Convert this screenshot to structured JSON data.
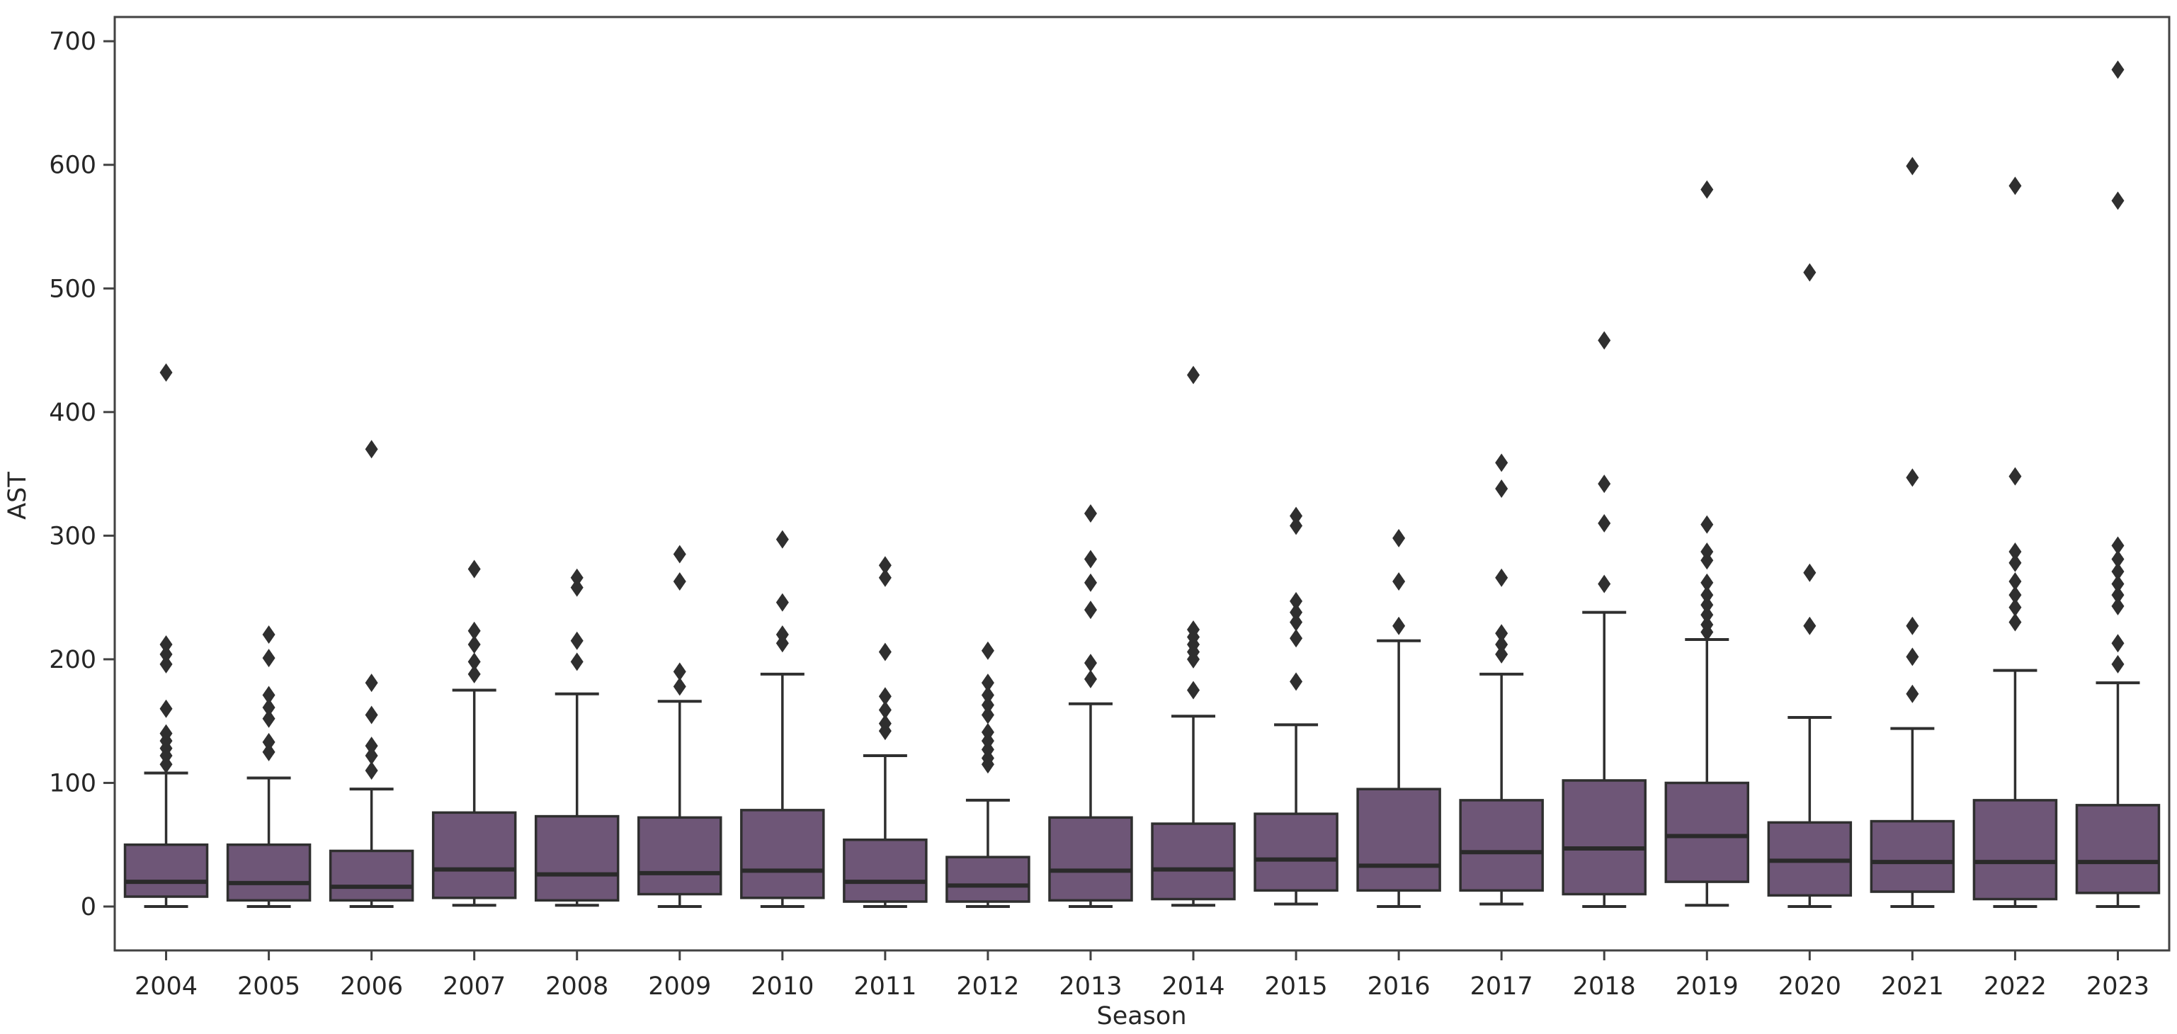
{
  "figure": {
    "background": "#ffffff",
    "box_fill": "#6e5677",
    "line_color": "#2f2f2f",
    "median_color": "#2a2a2a",
    "spine_color": "#424242",
    "text_color": "#262626"
  },
  "chart_data": {
    "type": "box",
    "title": "",
    "xlabel": "Season",
    "ylabel": "AST",
    "ylim": [
      -35,
      719
    ],
    "yticks": [
      0,
      100,
      200,
      300,
      400,
      500,
      600,
      700
    ],
    "grid": false,
    "legend": "none",
    "categories": [
      "2004",
      "2005",
      "2006",
      "2007",
      "2008",
      "2009",
      "2010",
      "2011",
      "2012",
      "2013",
      "2014",
      "2015",
      "2016",
      "2017",
      "2018",
      "2019",
      "2020",
      "2021",
      "2022",
      "2023"
    ],
    "series": [
      {
        "season": "2004",
        "whisker_low": 0,
        "q1": 8,
        "median": 20,
        "q3": 50,
        "whisker_high": 108,
        "outliers": [
          115,
          122,
          128,
          134,
          140,
          160,
          196,
          204,
          212,
          432
        ]
      },
      {
        "season": "2005",
        "whisker_low": 0,
        "q1": 5,
        "median": 19,
        "q3": 50,
        "whisker_high": 104,
        "outliers": [
          125,
          133,
          152,
          161,
          171,
          201,
          220
        ]
      },
      {
        "season": "2006",
        "whisker_low": 0,
        "q1": 5,
        "median": 16,
        "q3": 45,
        "whisker_high": 95,
        "outliers": [
          110,
          122,
          130,
          155,
          181,
          370
        ]
      },
      {
        "season": "2007",
        "whisker_low": 1,
        "q1": 7,
        "median": 30,
        "q3": 76,
        "whisker_high": 175,
        "outliers": [
          188,
          198,
          212,
          223,
          273
        ]
      },
      {
        "season": "2008",
        "whisker_low": 1,
        "q1": 5,
        "median": 26,
        "q3": 73,
        "whisker_high": 172,
        "outliers": [
          198,
          215,
          258,
          266
        ]
      },
      {
        "season": "2009",
        "whisker_low": 0,
        "q1": 10,
        "median": 27,
        "q3": 72,
        "whisker_high": 166,
        "outliers": [
          178,
          190,
          263,
          285
        ]
      },
      {
        "season": "2010",
        "whisker_low": 0,
        "q1": 7,
        "median": 29,
        "q3": 78,
        "whisker_high": 188,
        "outliers": [
          213,
          220,
          246,
          297
        ]
      },
      {
        "season": "2011",
        "whisker_low": 0,
        "q1": 4,
        "median": 20,
        "q3": 54,
        "whisker_high": 122,
        "outliers": [
          142,
          148,
          159,
          170,
          206,
          266,
          276
        ]
      },
      {
        "season": "2012",
        "whisker_low": 0,
        "q1": 4,
        "median": 17,
        "q3": 40,
        "whisker_high": 86,
        "outliers": [
          115,
          120,
          127,
          134,
          141,
          155,
          163,
          171,
          181,
          207
        ]
      },
      {
        "season": "2013",
        "whisker_low": 0,
        "q1": 5,
        "median": 29,
        "q3": 72,
        "whisker_high": 164,
        "outliers": [
          184,
          197,
          240,
          262,
          281,
          318
        ]
      },
      {
        "season": "2014",
        "whisker_low": 1,
        "q1": 6,
        "median": 30,
        "q3": 67,
        "whisker_high": 154,
        "outliers": [
          175,
          200,
          206,
          212,
          218,
          224,
          430
        ]
      },
      {
        "season": "2015",
        "whisker_low": 2,
        "q1": 13,
        "median": 38,
        "q3": 75,
        "whisker_high": 147,
        "outliers": [
          182,
          217,
          230,
          238,
          247,
          308,
          316
        ]
      },
      {
        "season": "2016",
        "whisker_low": 0,
        "q1": 13,
        "median": 33,
        "q3": 95,
        "whisker_high": 215,
        "outliers": [
          227,
          263,
          298
        ]
      },
      {
        "season": "2017",
        "whisker_low": 2,
        "q1": 13,
        "median": 44,
        "q3": 86,
        "whisker_high": 188,
        "outliers": [
          204,
          212,
          221,
          266,
          338,
          359
        ]
      },
      {
        "season": "2018",
        "whisker_low": 0,
        "q1": 10,
        "median": 47,
        "q3": 102,
        "whisker_high": 238,
        "outliers": [
          261,
          310,
          342,
          458
        ]
      },
      {
        "season": "2019",
        "whisker_low": 1,
        "q1": 20,
        "median": 57,
        "q3": 100,
        "whisker_high": 216,
        "outliers": [
          222,
          228,
          236,
          244,
          252,
          262,
          280,
          287,
          309,
          580
        ]
      },
      {
        "season": "2020",
        "whisker_low": 0,
        "q1": 9,
        "median": 37,
        "q3": 68,
        "whisker_high": 153,
        "outliers": [
          227,
          270,
          513
        ]
      },
      {
        "season": "2021",
        "whisker_low": 0,
        "q1": 12,
        "median": 36,
        "q3": 69,
        "whisker_high": 144,
        "outliers": [
          172,
          202,
          227,
          347,
          599
        ]
      },
      {
        "season": "2022",
        "whisker_low": 0,
        "q1": 6,
        "median": 36,
        "q3": 86,
        "whisker_high": 191,
        "outliers": [
          230,
          242,
          252,
          263,
          278,
          287,
          348,
          583
        ]
      },
      {
        "season": "2023",
        "whisker_low": 0,
        "q1": 11,
        "median": 36,
        "q3": 82,
        "whisker_high": 181,
        "outliers": [
          196,
          213,
          243,
          252,
          261,
          271,
          281,
          292,
          571,
          677
        ]
      }
    ]
  }
}
